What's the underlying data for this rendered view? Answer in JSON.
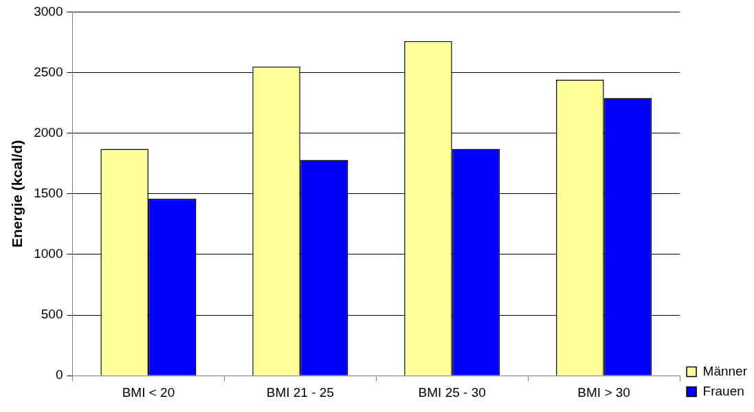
{
  "chart_data": {
    "type": "bar",
    "ylabel": "Energie (kcal/d)",
    "categories": [
      "BMI < 20",
      "BMI 21 - 25",
      "BMI 25 - 30",
      "BMI > 30"
    ],
    "series": [
      {
        "name": "Männer",
        "color": "#ffff99",
        "values": [
          1870,
          2550,
          2760,
          2440
        ]
      },
      {
        "name": "Frauen",
        "color": "#0000ff",
        "values": [
          1460,
          1780,
          1870,
          2290
        ]
      }
    ],
    "ylim": [
      0,
      3000
    ],
    "yticks": [
      0,
      500,
      1000,
      1500,
      2000,
      2500,
      3000
    ],
    "grid": "y",
    "legend": "bottom right"
  }
}
